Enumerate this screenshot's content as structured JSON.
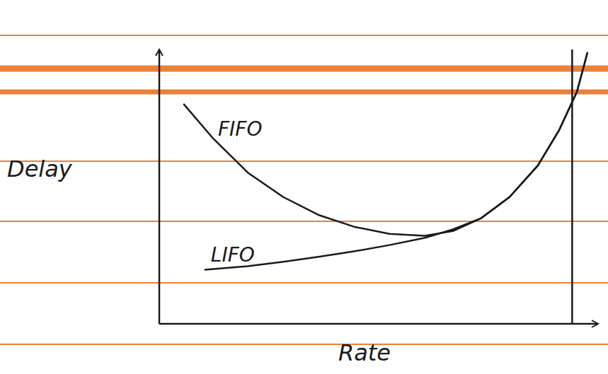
{
  "chart_data": {
    "type": "line",
    "xlabel": "Rate",
    "ylabel": "Delay",
    "xlim": [
      0,
      11
    ],
    "ylim": [
      0,
      10
    ],
    "xticks": [],
    "yticks": [],
    "tick_labels": false,
    "grid": false,
    "vlines": [
      10.35
    ],
    "series": [
      {
        "name": "FIFO",
        "color": "#1a1a1a",
        "line_style": "solid",
        "x": [
          0.62,
          1.33,
          2.22,
          3.11,
          3.99,
          4.88,
          5.77,
          6.65,
          7.36,
          8.07,
          8.78,
          9.49,
          10.02,
          10.47,
          10.73
        ],
        "values": [
          8.0,
          6.79,
          5.51,
          4.62,
          3.97,
          3.54,
          3.28,
          3.21,
          3.38,
          3.85,
          4.62,
          5.77,
          7.05,
          8.46,
          9.87
        ]
      },
      {
        "name": "LIFO",
        "color": "#1a1a1a",
        "line_style": "solid",
        "x": [
          1.15,
          2.22,
          3.11,
          3.99,
          4.88,
          5.77,
          6.65,
          7.36,
          8.07,
          8.78,
          9.49,
          10.02,
          10.47,
          10.73
        ],
        "values": [
          1.97,
          2.1,
          2.26,
          2.44,
          2.64,
          2.87,
          3.13,
          3.44,
          3.85,
          4.62,
          5.77,
          7.05,
          8.46,
          9.87
        ]
      }
    ]
  }
}
